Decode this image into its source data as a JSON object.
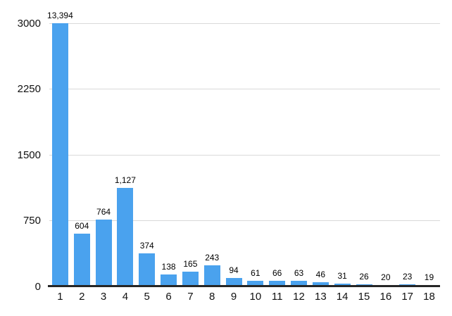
{
  "chart_data": {
    "type": "bar",
    "title": "",
    "xlabel": "",
    "ylabel": "",
    "categories": [
      "1",
      "2",
      "3",
      "4",
      "5",
      "6",
      "7",
      "8",
      "9",
      "10",
      "11",
      "12",
      "13",
      "14",
      "15",
      "16",
      "17",
      "18"
    ],
    "values": [
      13394,
      604,
      764,
      1127,
      374,
      138,
      165,
      243,
      94,
      61,
      66,
      63,
      46,
      31,
      26,
      20,
      23,
      19
    ],
    "value_labels": [
      "13,394",
      "604",
      "764",
      "1,127",
      "374",
      "138",
      "165",
      "243",
      "94",
      "61",
      "66",
      "63",
      "46",
      "31",
      "26",
      "20",
      "23",
      "19"
    ],
    "ylim": [
      0,
      3000
    ],
    "yticks": [
      0,
      750,
      1500,
      2250,
      3000
    ],
    "ytick_labels": [
      "0",
      "750",
      "1500",
      "2250",
      "3000"
    ],
    "grid": true,
    "legend": false,
    "bars_clipped_at_ymax": [
      "1"
    ]
  },
  "colors": {
    "bar": "#4aa2ee",
    "gridline": "#d9d9d9",
    "axis_line": "#262626",
    "label_text": "#000000",
    "tick_text": "#111111",
    "background": "#ffffff"
  }
}
